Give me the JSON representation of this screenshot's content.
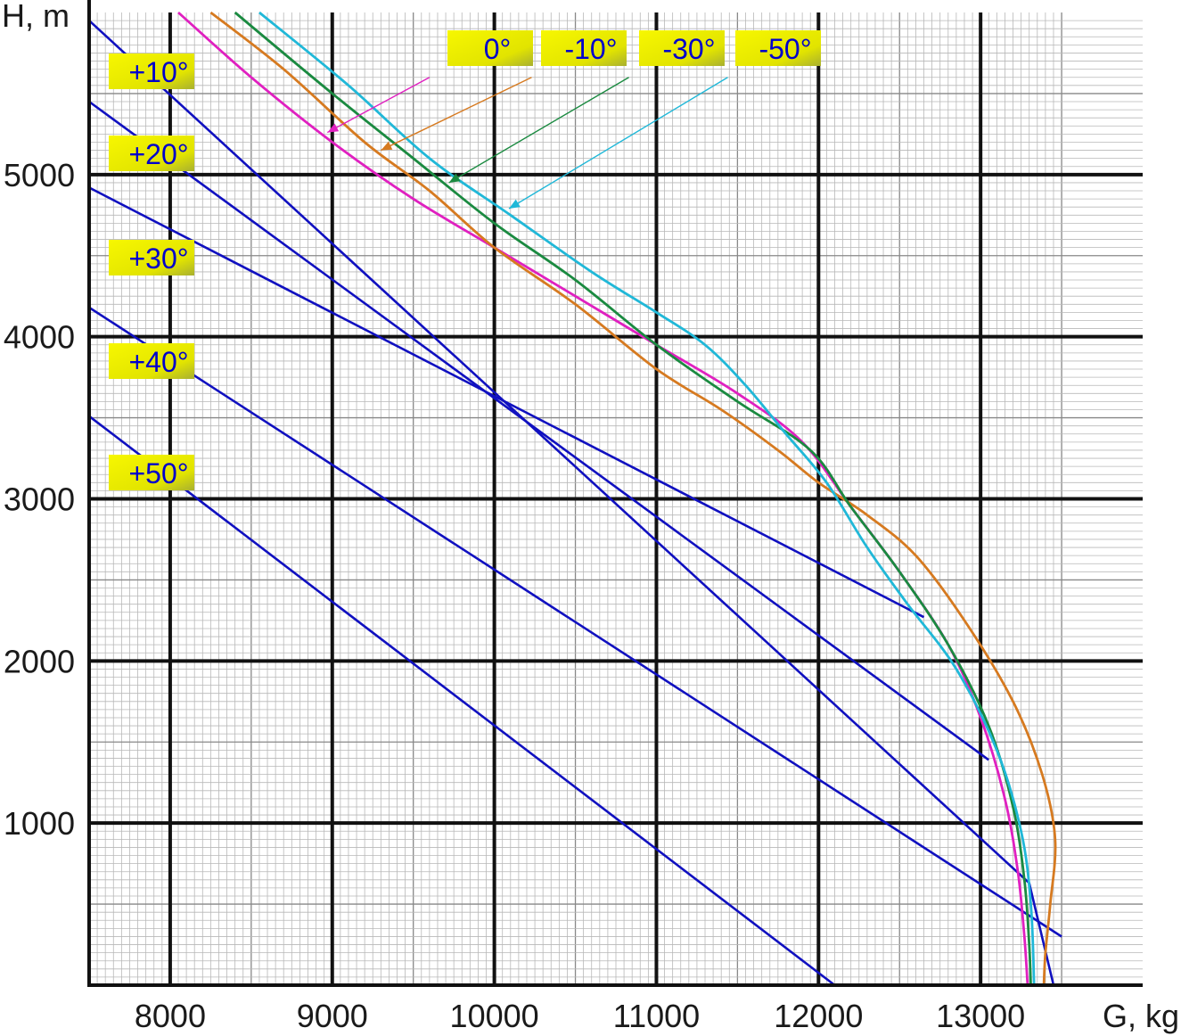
{
  "chart_data": {
    "type": "line",
    "title": "",
    "xlabel": "G, kg",
    "ylabel": "H, m",
    "xlim": [
      7500,
      13500
    ],
    "ylim": [
      0,
      6000
    ],
    "x_ticks": [
      "8000",
      "9000",
      "10000",
      "11000",
      "12000",
      "13000"
    ],
    "y_ticks": [
      "1000",
      "2000",
      "3000",
      "4000",
      "5000"
    ],
    "grid": true,
    "colors": {
      "temperature_lines": "#1010c0",
      "0": "#e020c0",
      "-10": "#d67a20",
      "-30": "#1a8a40",
      "-50": "#20b8d8",
      "label_bg": "#e6e600"
    },
    "temperature_lines": [
      {
        "label": "+10°",
        "x": [
          7500,
          13300,
          13450
        ],
        "y": [
          5950,
          630,
          0
        ]
      },
      {
        "label": "+20°",
        "x": [
          7500,
          13050
        ],
        "y": [
          5450,
          1390
        ]
      },
      {
        "label": "+30°",
        "x": [
          7500,
          12650
        ],
        "y": [
          4920,
          2270
        ]
      },
      {
        "label": "+40°",
        "x": [
          7500,
          13500
        ],
        "y": [
          4180,
          300
        ]
      },
      {
        "label": "+50°",
        "x": [
          7500,
          12100
        ],
        "y": [
          3510,
          0
        ]
      }
    ],
    "series": [
      {
        "name": "0°",
        "x": [
          8050,
          8500,
          9000,
          9500,
          10000,
          10500,
          11000,
          11500,
          11900,
          12200,
          12500,
          12800,
          13000,
          13150,
          13230,
          13270,
          13290
        ],
        "y": [
          6000,
          5600,
          5200,
          4850,
          4550,
          4250,
          3950,
          3650,
          3350,
          2950,
          2550,
          2100,
          1650,
          1150,
          700,
          300,
          0
        ]
      },
      {
        "name": "-10°",
        "x": [
          8250,
          8700,
          9200,
          9600,
          10000,
          10500,
          11000,
          11400,
          11750,
          12000,
          12300,
          12600,
          12900,
          13200,
          13380,
          13460,
          13430,
          13400,
          13390
        ],
        "y": [
          6000,
          5650,
          5200,
          4900,
          4550,
          4200,
          3800,
          3550,
          3300,
          3100,
          2900,
          2650,
          2250,
          1750,
          1300,
          900,
          500,
          200,
          0
        ]
      },
      {
        "name": "-30°",
        "x": [
          8400,
          9000,
          9500,
          10000,
          10500,
          11000,
          11500,
          11950,
          12200,
          12500,
          12800,
          13050,
          13200,
          13270,
          13300,
          13310
        ],
        "y": [
          6000,
          5500,
          5100,
          4700,
          4350,
          3950,
          3600,
          3300,
          2950,
          2550,
          2100,
          1600,
          1100,
          650,
          250,
          0
        ]
      },
      {
        "name": "-50°",
        "x": [
          8550,
          9100,
          9600,
          10100,
          10600,
          11000,
          11300,
          11550,
          11800,
          12050,
          12300,
          12550,
          12850,
          13100,
          13250,
          13310,
          13330
        ],
        "y": [
          6000,
          5550,
          5100,
          4750,
          4400,
          4150,
          3950,
          3700,
          3400,
          3100,
          2700,
          2350,
          1950,
          1450,
          950,
          500,
          0
        ]
      }
    ],
    "series_labels": [
      {
        "text": "0°",
        "at": [
          9400,
          5700
        ]
      },
      {
        "text": "-10°",
        "at": [
          10000,
          5700
        ]
      },
      {
        "text": "-30°",
        "at": [
          10600,
          5700
        ]
      },
      {
        "text": "-50°",
        "at": [
          11200,
          5700
        ]
      }
    ],
    "arrows": [
      {
        "from": [
          9600,
          5600
        ],
        "to": [
          8970,
          5260
        ],
        "series": "0°"
      },
      {
        "from": [
          10230,
          5600
        ],
        "to": [
          9300,
          5150
        ],
        "series": "-10°"
      },
      {
        "from": [
          10830,
          5600
        ],
        "to": [
          9720,
          4950
        ],
        "series": "-30°"
      },
      {
        "from": [
          11440,
          5600
        ],
        "to": [
          10090,
          4790
        ],
        "series": "-50°"
      }
    ]
  }
}
